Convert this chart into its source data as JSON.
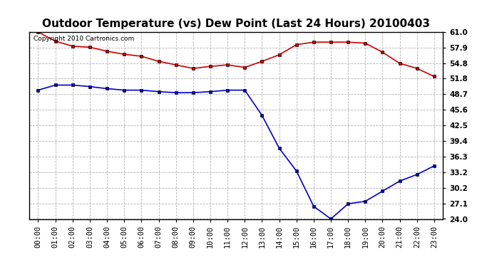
{
  "title": "Outdoor Temperature (vs) Dew Point (Last 24 Hours) 20100403",
  "copyright": "Copyright 2010 Cartronics.com",
  "hours": [
    "00:00",
    "01:00",
    "02:00",
    "03:00",
    "04:00",
    "05:00",
    "06:00",
    "07:00",
    "08:00",
    "09:00",
    "10:00",
    "11:00",
    "12:00",
    "13:00",
    "14:00",
    "15:00",
    "16:00",
    "17:00",
    "18:00",
    "19:00",
    "20:00",
    "21:00",
    "22:00",
    "23:00"
  ],
  "temp": [
    61.0,
    59.2,
    58.2,
    58.0,
    57.2,
    56.6,
    56.2,
    55.2,
    54.5,
    53.8,
    54.2,
    54.5,
    54.0,
    55.2,
    56.5,
    58.5,
    59.0,
    59.0,
    59.0,
    58.8,
    57.0,
    54.8,
    53.8,
    52.2
  ],
  "dew": [
    49.5,
    50.5,
    50.5,
    50.2,
    49.8,
    49.5,
    49.5,
    49.2,
    49.0,
    49.0,
    49.2,
    49.5,
    49.5,
    44.5,
    38.0,
    33.5,
    26.5,
    24.0,
    27.0,
    27.5,
    29.5,
    31.5,
    32.8,
    34.5
  ],
  "temp_color": "#cc0000",
  "dew_color": "#0000cc",
  "bg_color": "#ffffff",
  "grid_color": "#aaaaaa",
  "ylim_min": 24.0,
  "ylim_max": 61.0,
  "yticks": [
    24.0,
    27.1,
    30.2,
    33.2,
    36.3,
    39.4,
    42.5,
    45.6,
    48.7,
    51.8,
    54.8,
    57.9,
    61.0
  ],
  "ytick_labels": [
    "24.0",
    "27.1",
    "30.2",
    "33.2",
    "36.3",
    "39.4",
    "42.5",
    "45.6",
    "48.7",
    "51.8",
    "54.8",
    "57.9",
    "61.0"
  ],
  "marker": "s",
  "marker_size": 3,
  "line_width": 1.2,
  "title_fontsize": 11,
  "tick_fontsize": 7.5,
  "copyright_fontsize": 6.5
}
